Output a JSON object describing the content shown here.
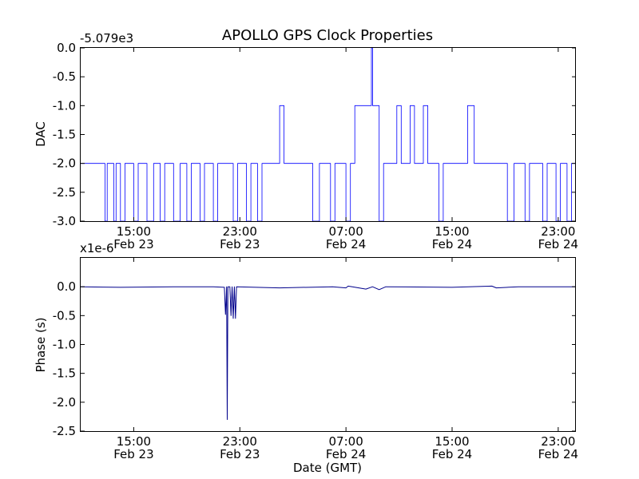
{
  "chart_data": [
    {
      "type": "line",
      "title": "APOLLO GPS Clock Properties",
      "xlabel": "",
      "ylabel": "DAC",
      "y_offset_label": "-5.079e3",
      "xlim": [
        "2012-02-23 11:00",
        "2012-02-25 00:20"
      ],
      "ylim": [
        -3.0,
        0.0
      ],
      "yticks": [
        {
          "value": 0.0,
          "label": "0.0"
        },
        {
          "value": -0.5,
          "label": "-0.5"
        },
        {
          "value": -1.0,
          "label": "-1.0"
        },
        {
          "value": -1.5,
          "label": "-1.5"
        },
        {
          "value": -2.0,
          "label": "-2.0"
        },
        {
          "value": -2.5,
          "label": "-2.5"
        },
        {
          "value": -3.0,
          "label": "-3.0"
        }
      ],
      "xticks": [
        {
          "time": "2012-02-23 15:00",
          "label": "15:00",
          "sublabel": "Feb 23"
        },
        {
          "time": "2012-02-23 23:00",
          "label": "23:00",
          "sublabel": "Feb 23"
        },
        {
          "time": "2012-02-24 07:00",
          "label": "07:00",
          "sublabel": "Feb 24"
        },
        {
          "time": "2012-02-24 15:00",
          "label": "15:00",
          "sublabel": "Feb 24"
        },
        {
          "time": "2012-02-24 23:00",
          "label": "23:00",
          "sublabel": "Feb 24"
        }
      ],
      "grid": false,
      "line_color": "#0000ff",
      "series": [
        {
          "name": "",
          "points": [
            [
              "2012-02-23 11:00",
              -2.0
            ],
            [
              "2012-02-23 12:45",
              -2.0
            ],
            [
              "2012-02-23 12:50",
              -3.0
            ],
            [
              "2012-02-23 13:00",
              -2.0
            ],
            [
              "2012-02-23 13:30",
              -3.0
            ],
            [
              "2012-02-23 13:40",
              -2.0
            ],
            [
              "2012-02-23 14:00",
              -3.0
            ],
            [
              "2012-02-23 14:20",
              -2.0
            ],
            [
              "2012-02-23 15:00",
              -3.0
            ],
            [
              "2012-02-23 15:20",
              -2.0
            ],
            [
              "2012-02-23 16:00",
              -3.0
            ],
            [
              "2012-02-23 16:30",
              -2.0
            ],
            [
              "2012-02-23 17:00",
              -3.0
            ],
            [
              "2012-02-23 17:20",
              -2.0
            ],
            [
              "2012-02-23 18:00",
              -3.0
            ],
            [
              "2012-02-23 18:30",
              -2.0
            ],
            [
              "2012-02-23 19:00",
              -3.0
            ],
            [
              "2012-02-23 19:20",
              -2.0
            ],
            [
              "2012-02-23 20:00",
              -3.0
            ],
            [
              "2012-02-23 20:20",
              -2.0
            ],
            [
              "2012-02-23 21:00",
              -3.0
            ],
            [
              "2012-02-23 21:20",
              -2.0
            ],
            [
              "2012-02-23 22:30",
              -3.0
            ],
            [
              "2012-02-23 22:50",
              -2.0
            ],
            [
              "2012-02-23 23:30",
              -3.0
            ],
            [
              "2012-02-23 23:50",
              -2.0
            ],
            [
              "2012-02-24 00:20",
              -3.0
            ],
            [
              "2012-02-24 00:40",
              -2.0
            ],
            [
              "2012-02-24 01:30",
              -2.0
            ],
            [
              "2012-02-24 02:00",
              -1.0
            ],
            [
              "2012-02-24 02:20",
              -2.0
            ],
            [
              "2012-02-24 04:00",
              -2.0
            ],
            [
              "2012-02-24 04:30",
              -3.0
            ],
            [
              "2012-02-24 05:00",
              -2.0
            ],
            [
              "2012-02-24 05:50",
              -3.0
            ],
            [
              "2012-02-24 06:10",
              -2.0
            ],
            [
              "2012-02-24 07:00",
              -3.0
            ],
            [
              "2012-02-24 07:20",
              -2.0
            ],
            [
              "2012-02-24 07:40",
              -1.0
            ],
            [
              "2012-02-24 08:50",
              -1.0
            ],
            [
              "2012-02-24 08:55",
              0.0
            ],
            [
              "2012-02-24 09:00",
              -1.0
            ],
            [
              "2012-02-24 09:20",
              -1.0
            ],
            [
              "2012-02-24 09:30",
              -3.0
            ],
            [
              "2012-02-24 09:50",
              -2.0
            ],
            [
              "2012-02-24 10:50",
              -1.0
            ],
            [
              "2012-02-24 11:10",
              -2.0
            ],
            [
              "2012-02-24 11:50",
              -1.0
            ],
            [
              "2012-02-24 12:10",
              -2.0
            ],
            [
              "2012-02-24 12:50",
              -1.0
            ],
            [
              "2012-02-24 13:10",
              -2.0
            ],
            [
              "2012-02-24 14:00",
              -3.0
            ],
            [
              "2012-02-24 14:20",
              -2.0
            ],
            [
              "2012-02-24 16:10",
              -1.0
            ],
            [
              "2012-02-24 16:40",
              -2.0
            ],
            [
              "2012-02-24 19:00",
              -2.0
            ],
            [
              "2012-02-24 19:10",
              -3.0
            ],
            [
              "2012-02-24 19:40",
              -2.0
            ],
            [
              "2012-02-24 20:30",
              -3.0
            ],
            [
              "2012-02-24 20:50",
              -2.0
            ],
            [
              "2012-02-24 21:50",
              -3.0
            ],
            [
              "2012-02-24 22:10",
              -2.0
            ],
            [
              "2012-02-24 22:50",
              -3.0
            ],
            [
              "2012-02-24 23:10",
              -2.0
            ],
            [
              "2012-02-24 23:40",
              -3.0
            ],
            [
              "2012-02-25 00:00",
              -2.0
            ],
            [
              "2012-02-25 00:20",
              -2.0
            ]
          ]
        }
      ]
    },
    {
      "type": "line",
      "title": "",
      "xlabel": "Date (GMT)",
      "ylabel": "Phase (s)",
      "y_offset_label": "x1e-6",
      "xlim": [
        "2012-02-23 11:00",
        "2012-02-25 00:20"
      ],
      "ylim": [
        -2.5,
        0.5
      ],
      "yticks": [
        {
          "value": 0.0,
          "label": "0.0"
        },
        {
          "value": -0.5,
          "label": "-0.5"
        },
        {
          "value": -1.0,
          "label": "-1.0"
        },
        {
          "value": -1.5,
          "label": "-1.5"
        },
        {
          "value": -2.0,
          "label": "-2.0"
        },
        {
          "value": -2.5,
          "label": "-2.5"
        }
      ],
      "xticks": [
        {
          "time": "2012-02-23 15:00",
          "label": "15:00",
          "sublabel": "Feb 23"
        },
        {
          "time": "2012-02-23 23:00",
          "label": "23:00",
          "sublabel": "Feb 23"
        },
        {
          "time": "2012-02-24 07:00",
          "label": "07:00",
          "sublabel": "Feb 24"
        },
        {
          "time": "2012-02-24 15:00",
          "label": "15:00",
          "sublabel": "Feb 24"
        },
        {
          "time": "2012-02-24 23:00",
          "label": "23:00",
          "sublabel": "Feb 24"
        }
      ],
      "grid": false,
      "line_color": "#00008b",
      "series": [
        {
          "name": "",
          "points": [
            [
              "2012-02-23 11:00",
              0.0
            ],
            [
              "2012-02-23 14:00",
              -0.01
            ],
            [
              "2012-02-23 18:00",
              0.0
            ],
            [
              "2012-02-23 21:00",
              0.0
            ],
            [
              "2012-02-23 21:50",
              -0.01
            ],
            [
              "2012-02-23 21:55",
              -0.48
            ],
            [
              "2012-02-23 22:00",
              0.0
            ],
            [
              "2012-02-23 22:03",
              -2.3
            ],
            [
              "2012-02-23 22:06",
              0.0
            ],
            [
              "2012-02-23 22:15",
              0.0
            ],
            [
              "2012-02-23 22:20",
              -0.5
            ],
            [
              "2012-02-23 22:25",
              0.0
            ],
            [
              "2012-02-23 22:30",
              -0.55
            ],
            [
              "2012-02-23 22:35",
              0.0
            ],
            [
              "2012-02-23 22:40",
              -0.55
            ],
            [
              "2012-02-23 22:45",
              0.0
            ],
            [
              "2012-02-24 02:00",
              -0.02
            ],
            [
              "2012-02-24 06:00",
              0.0
            ],
            [
              "2012-02-24 07:00",
              -0.02
            ],
            [
              "2012-02-24 07:10",
              0.01
            ],
            [
              "2012-02-24 08:30",
              -0.04
            ],
            [
              "2012-02-24 09:00",
              0.0
            ],
            [
              "2012-02-24 09:30",
              -0.05
            ],
            [
              "2012-02-24 10:00",
              0.0
            ],
            [
              "2012-02-24 15:00",
              -0.01
            ],
            [
              "2012-02-24 18:00",
              0.01
            ],
            [
              "2012-02-24 18:20",
              -0.02
            ],
            [
              "2012-02-24 20:00",
              0.0
            ],
            [
              "2012-02-25 00:20",
              0.0
            ]
          ]
        }
      ]
    }
  ]
}
